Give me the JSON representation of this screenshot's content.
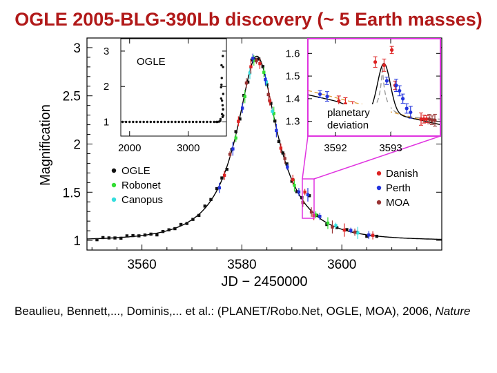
{
  "page_title": "OGLE 2005-BLG-390Lb discovery (~ 5 Earth masses)",
  "citation": {
    "authors_text": "Beaulieu, Bennett,..., Dominis,... et al.: (PLANET/Robo.Net, OGLE, MOA), 2006,",
    "journal": "Nature"
  },
  "chart_data": [
    {
      "id": "main",
      "type": "scatter",
      "title": "",
      "xlabel": "JD − 2450000",
      "ylabel": "Magnification",
      "xlim": [
        3549,
        3620
      ],
      "ylim": [
        0.9,
        3.1
      ],
      "x_ticks": [
        3560,
        3580,
        3600
      ],
      "y_ticks": [
        1,
        1.5,
        2,
        2.5,
        3
      ],
      "model_curve": {
        "t0": 3583,
        "tE": 11,
        "u0": 0.36
      },
      "legend_left": [
        "OGLE",
        "Robonet",
        "Canopus"
      ],
      "legend_right": [
        "Danish",
        "Perth",
        "MOA"
      ],
      "series": [
        {
          "name": "OGLE",
          "color": "#111111",
          "x": [
            3551,
            3552.2,
            3553.4,
            3554.6,
            3555.8,
            3557,
            3558.2,
            3559.4,
            3560.6,
            3561.8,
            3563,
            3564.2,
            3565.4,
            3566.6,
            3567.8,
            3569,
            3570.2,
            3571.4,
            3572.6,
            3573.8,
            3575,
            3576,
            3577,
            3578,
            3578.8,
            3579.6,
            3580.4,
            3581.2,
            3582,
            3582.8,
            3583.4,
            3584.2,
            3585,
            3585.8,
            3586.6,
            3587.4,
            3588.2,
            3589,
            3590,
            3591,
            3592,
            3593.5,
            3595,
            3597,
            3599,
            3601,
            3603,
            3605,
            3607
          ]
        },
        {
          "name": "Robonet",
          "color": "#33dd33",
          "x": [
            3578.8,
            3580.6,
            3582.4,
            3584.4,
            3586.4,
            3590.5,
            3594.8,
            3597.2
          ]
        },
        {
          "name": "Canopus",
          "color": "#33dddd",
          "x": [
            3581.6,
            3584.9,
            3586.1,
            3598.8,
            3603.2
          ]
        },
        {
          "name": "Danish",
          "color": "#dd2222",
          "x": [
            3576.5,
            3579.3,
            3581.8,
            3583.6,
            3585.6,
            3587.8,
            3590.2,
            3592.6,
            3594.4,
            3600.5,
            3606.2
          ]
        },
        {
          "name": "Perth",
          "color": "#2233dd",
          "x": [
            3575.5,
            3578.2,
            3580.1,
            3582.2,
            3584.7,
            3586.9,
            3589.1,
            3591.4,
            3593.2,
            3595.6,
            3601.8,
            3605.4
          ]
        },
        {
          "name": "MOA",
          "color": "#993333",
          "x": [
            3577.6,
            3580.9,
            3582.9,
            3585.3,
            3588.6,
            3592.2,
            3593.9,
            3598.1,
            3602.6
          ]
        }
      ]
    },
    {
      "id": "inset_ogle",
      "type": "scatter",
      "label": "OGLE",
      "xlim": [
        1850,
        3650
      ],
      "ylim": [
        0.6,
        3.35
      ],
      "x_ticks": [
        2000,
        3000
      ],
      "y_ticks": [
        1,
        2,
        3
      ],
      "series": [
        {
          "name": "OGLE",
          "color": "#111111",
          "x": [
            1880,
            1940,
            2000,
            2060,
            2120,
            2180,
            2240,
            2300,
            2360,
            2420,
            2480,
            2540,
            2600,
            2660,
            2720,
            2780,
            2840,
            2900,
            2960,
            3020,
            3080,
            3140,
            3200,
            3260,
            3320,
            3380,
            3440,
            3480,
            3500
          ],
          "y": [
            1,
            1,
            1,
            1,
            1,
            1,
            1,
            1,
            1,
            1,
            1,
            1,
            1,
            1,
            1,
            1,
            1,
            1,
            1,
            1,
            1,
            1,
            1,
            1,
            1,
            1,
            1,
            1,
            1
          ]
        },
        {
          "name": "OGLE event",
          "color": "#111111",
          "x": [
            3540,
            3550,
            3560,
            3566,
            3570,
            3574,
            3576,
            3578,
            3579,
            3580,
            3581,
            3582,
            3583,
            3584,
            3586,
            3589,
            3593,
            3600
          ],
          "y": [
            1.01,
            1.03,
            1.08,
            1.14,
            1.22,
            1.35,
            1.47,
            1.66,
            1.79,
            1.98,
            2.24,
            2.55,
            2.86,
            2.6,
            2.05,
            1.6,
            1.36,
            1.18
          ]
        }
      ]
    },
    {
      "id": "inset_zoom",
      "type": "scatter",
      "label": "planetary deviation",
      "xlim": [
        3591.5,
        3593.9
      ],
      "ylim": [
        1.235,
        1.665
      ],
      "x_ticks": [
        3592,
        3593
      ],
      "y_ticks": [
        1.3,
        1.4,
        1.5,
        1.6
      ],
      "series": [
        {
          "name": "Danish",
          "color": "#dd2222",
          "x": [
            3592.06,
            3592.18,
            3592.31,
            3592.47,
            3592.72,
            3592.88,
            3593.02,
            3593.08,
            3593.55,
            3593.6,
            3593.65
          ],
          "y": [
            1.39,
            1.377,
            1.365,
            1.353,
            1.562,
            1.548,
            1.615,
            1.459,
            1.31,
            1.31,
            1.31
          ]
        },
        {
          "name": "Perth",
          "color": "#2233dd",
          "x": [
            3591.72,
            3591.85,
            3592.93,
            3593.1,
            3593.16,
            3593.22,
            3593.29,
            3593.36
          ],
          "y": [
            1.42,
            1.41,
            1.479,
            1.459,
            1.435,
            1.4,
            1.357,
            1.34
          ]
        },
        {
          "name": "MOA",
          "color": "#993333",
          "x": [
            3593.7,
            3593.75,
            3593.8
          ],
          "y": [
            1.31,
            1.305,
            1.305
          ]
        }
      ]
    }
  ]
}
